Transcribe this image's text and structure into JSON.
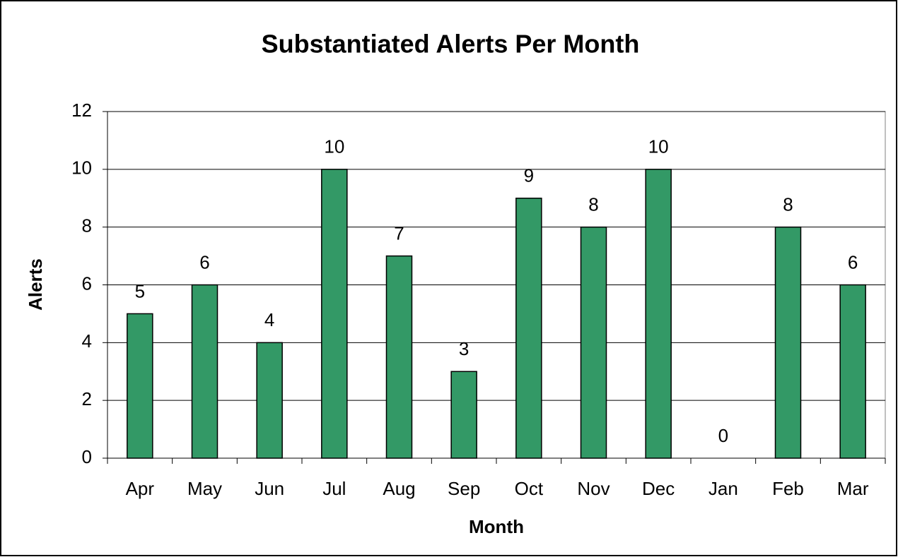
{
  "chart_data": {
    "type": "bar",
    "title": "Substantiated Alerts Per Month",
    "x_label": "Month",
    "y_label": "Alerts",
    "categories": [
      "Apr",
      "May",
      "Jun",
      "Jul",
      "Aug",
      "Sep",
      "Oct",
      "Nov",
      "Dec",
      "Jan",
      "Feb",
      "Mar"
    ],
    "values": [
      5,
      6,
      4,
      10,
      7,
      3,
      9,
      8,
      10,
      0,
      8,
      6
    ],
    "color": "#339966",
    "ylim": [
      0,
      12
    ],
    "yticks": [
      0,
      2,
      4,
      6,
      8,
      10,
      12
    ],
    "grid": true
  }
}
